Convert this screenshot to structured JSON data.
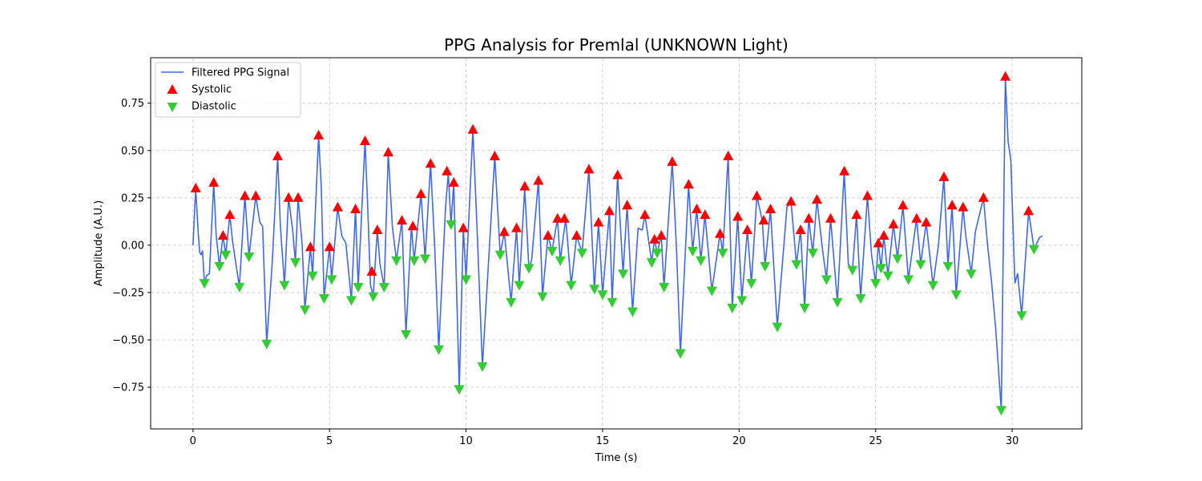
{
  "chart_data": {
    "type": "line",
    "title": "PPG Analysis for Premlal (UNKNOWN Light)",
    "xlabel": "Time (s)",
    "ylabel": "Amplitude (A.U.)",
    "xlim": [
      -1.55,
      32.55
    ],
    "ylim": [
      -0.97,
      0.99
    ],
    "xticks": [
      0,
      5,
      10,
      15,
      20,
      25,
      30
    ],
    "yticks": [
      -0.75,
      -0.5,
      -0.25,
      0.0,
      0.25,
      0.5,
      0.75
    ],
    "ytick_labels": [
      "−0.75",
      "−0.50",
      "−0.25",
      "0.00",
      "0.25",
      "0.50",
      "0.75"
    ],
    "grid": true,
    "legend_position": "top-left",
    "colors": {
      "signal": "#4169e1",
      "systolic": "#ff0000",
      "diastolic": "#32cd32"
    },
    "series": [
      {
        "name": "Filtered PPG Signal",
        "kind": "line",
        "points": [
          [
            0.0,
            0.0
          ],
          [
            0.1,
            0.3
          ],
          [
            0.2,
            0.05
          ],
          [
            0.25,
            -0.04
          ],
          [
            0.3,
            -0.05
          ],
          [
            0.35,
            -0.03
          ],
          [
            0.42,
            -0.2
          ],
          [
            0.5,
            -0.16
          ],
          [
            0.6,
            -0.15
          ],
          [
            0.76,
            0.33
          ],
          [
            0.85,
            0.05
          ],
          [
            0.97,
            -0.11
          ],
          [
            1.1,
            0.05
          ],
          [
            1.2,
            -0.05
          ],
          [
            1.35,
            0.16
          ],
          [
            1.45,
            0.02
          ],
          [
            1.7,
            -0.22
          ],
          [
            1.9,
            0.26
          ],
          [
            2.05,
            -0.06
          ],
          [
            2.3,
            0.26
          ],
          [
            2.45,
            0.12
          ],
          [
            2.55,
            0.1
          ],
          [
            2.7,
            -0.52
          ],
          [
            2.9,
            -0.1
          ],
          [
            3.1,
            0.47
          ],
          [
            3.2,
            0.1
          ],
          [
            3.35,
            -0.21
          ],
          [
            3.5,
            0.25
          ],
          [
            3.65,
            0.08
          ],
          [
            3.75,
            -0.09
          ],
          [
            3.85,
            0.25
          ],
          [
            4.0,
            0.0
          ],
          [
            4.1,
            -0.34
          ],
          [
            4.3,
            -0.01
          ],
          [
            4.38,
            -0.16
          ],
          [
            4.6,
            0.58
          ],
          [
            4.7,
            0.3
          ],
          [
            4.8,
            -0.28
          ],
          [
            5.0,
            -0.01
          ],
          [
            5.08,
            -0.18
          ],
          [
            5.3,
            0.2
          ],
          [
            5.45,
            0.05
          ],
          [
            5.6,
            0.01
          ],
          [
            5.8,
            -0.29
          ],
          [
            5.95,
            0.19
          ],
          [
            6.05,
            -0.22
          ],
          [
            6.3,
            0.55
          ],
          [
            6.4,
            0.2
          ],
          [
            6.5,
            -0.21
          ],
          [
            6.6,
            -0.27
          ],
          [
            6.75,
            0.08
          ],
          [
            6.85,
            -0.1
          ],
          [
            7.0,
            -0.22
          ],
          [
            7.15,
            0.49
          ],
          [
            7.3,
            0.1
          ],
          [
            7.45,
            -0.08
          ],
          [
            7.65,
            0.13
          ],
          [
            7.8,
            -0.47
          ],
          [
            8.0,
            0.1
          ],
          [
            8.1,
            -0.08
          ],
          [
            8.35,
            0.27
          ],
          [
            8.5,
            -0.07
          ],
          [
            8.7,
            0.43
          ],
          [
            8.85,
            0.0
          ],
          [
            9.0,
            -0.55
          ],
          [
            9.25,
            0.2
          ],
          [
            9.35,
            0.38
          ],
          [
            9.45,
            0.11
          ],
          [
            9.55,
            0.33
          ],
          [
            9.75,
            -0.76
          ],
          [
            9.9,
            0.09
          ],
          [
            10.0,
            -0.18
          ],
          [
            10.25,
            0.61
          ],
          [
            10.4,
            0.1
          ],
          [
            10.6,
            -0.64
          ],
          [
            11.05,
            0.47
          ],
          [
            11.25,
            -0.05
          ],
          [
            11.4,
            0.07
          ],
          [
            11.65,
            -0.3
          ],
          [
            11.85,
            0.09
          ],
          [
            11.95,
            -0.21
          ],
          [
            12.15,
            0.3
          ],
          [
            12.3,
            -0.12
          ],
          [
            12.4,
            -0.08
          ],
          [
            12.65,
            0.34
          ],
          [
            12.8,
            -0.27
          ],
          [
            13.0,
            0.05
          ],
          [
            13.15,
            -0.03
          ],
          [
            13.35,
            0.14
          ],
          [
            13.45,
            -0.08
          ],
          [
            13.65,
            0.14
          ],
          [
            13.85,
            -0.21
          ],
          [
            14.05,
            0.05
          ],
          [
            14.25,
            -0.04
          ],
          [
            14.5,
            0.4
          ],
          [
            14.7,
            -0.23
          ],
          [
            14.85,
            0.12
          ],
          [
            15.0,
            -0.26
          ],
          [
            15.25,
            0.18
          ],
          [
            15.35,
            -0.3
          ],
          [
            15.55,
            0.37
          ],
          [
            15.75,
            -0.15
          ],
          [
            15.9,
            0.21
          ],
          [
            16.1,
            -0.35
          ],
          [
            16.3,
            0.09
          ],
          [
            16.45,
            0.08
          ],
          [
            16.55,
            0.16
          ],
          [
            16.8,
            -0.09
          ],
          [
            16.9,
            0.03
          ],
          [
            17.0,
            -0.04
          ],
          [
            17.15,
            0.05
          ],
          [
            17.25,
            -0.22
          ],
          [
            17.55,
            0.44
          ],
          [
            17.7,
            0.0
          ],
          [
            17.85,
            -0.57
          ],
          [
            18.15,
            0.32
          ],
          [
            18.3,
            -0.03
          ],
          [
            18.45,
            0.19
          ],
          [
            18.6,
            -0.08
          ],
          [
            18.75,
            0.16
          ],
          [
            19.0,
            -0.24
          ],
          [
            19.3,
            0.06
          ],
          [
            19.4,
            -0.04
          ],
          [
            19.6,
            0.47
          ],
          [
            19.75,
            -0.33
          ],
          [
            19.95,
            0.15
          ],
          [
            20.1,
            -0.29
          ],
          [
            20.3,
            0.08
          ],
          [
            20.45,
            -0.2
          ],
          [
            20.65,
            0.26
          ],
          [
            20.85,
            0.13
          ],
          [
            20.95,
            -0.11
          ],
          [
            21.15,
            0.19
          ],
          [
            21.4,
            -0.43
          ],
          [
            21.75,
            0.2
          ],
          [
            21.9,
            0.23
          ],
          [
            22.1,
            -0.1
          ],
          [
            22.25,
            0.08
          ],
          [
            22.4,
            -0.33
          ],
          [
            22.55,
            0.14
          ],
          [
            22.7,
            -0.04
          ],
          [
            22.85,
            0.24
          ],
          [
            23.05,
            -0.02
          ],
          [
            23.2,
            -0.18
          ],
          [
            23.35,
            0.14
          ],
          [
            23.6,
            -0.3
          ],
          [
            23.85,
            0.39
          ],
          [
            24.0,
            -0.1
          ],
          [
            24.15,
            -0.13
          ],
          [
            24.3,
            0.16
          ],
          [
            24.45,
            -0.28
          ],
          [
            24.7,
            0.26
          ],
          [
            24.85,
            -0.05
          ],
          [
            25.0,
            -0.2
          ],
          [
            25.1,
            0.01
          ],
          [
            25.2,
            -0.12
          ],
          [
            25.3,
            0.05
          ],
          [
            25.45,
            -0.16
          ],
          [
            25.65,
            0.11
          ],
          [
            25.8,
            -0.07
          ],
          [
            26.0,
            0.21
          ],
          [
            26.2,
            -0.18
          ],
          [
            26.5,
            0.14
          ],
          [
            26.65,
            -0.1
          ],
          [
            26.85,
            0.12
          ],
          [
            27.1,
            -0.21
          ],
          [
            27.3,
            0.0
          ],
          [
            27.5,
            0.36
          ],
          [
            27.65,
            -0.11
          ],
          [
            27.8,
            0.21
          ],
          [
            27.95,
            -0.26
          ],
          [
            28.2,
            0.2
          ],
          [
            28.3,
            0.05
          ],
          [
            28.5,
            -0.15
          ],
          [
            28.65,
            0.07
          ],
          [
            28.95,
            0.25
          ],
          [
            29.1,
            0.0
          ],
          [
            29.25,
            -0.2
          ],
          [
            29.4,
            -0.45
          ],
          [
            29.6,
            -0.87
          ],
          [
            29.75,
            0.89
          ],
          [
            29.85,
            0.55
          ],
          [
            29.95,
            0.45
          ],
          [
            30.1,
            -0.2
          ],
          [
            30.2,
            -0.15
          ],
          [
            30.35,
            -0.37
          ],
          [
            30.6,
            0.18
          ],
          [
            30.8,
            -0.02
          ],
          [
            31.0,
            0.04
          ],
          [
            31.1,
            0.05
          ]
        ]
      },
      {
        "name": "Systolic",
        "kind": "markers",
        "marker": "triangle-up",
        "x": [
          0.1,
          0.76,
          1.1,
          1.35,
          1.9,
          2.3,
          3.1,
          3.5,
          3.85,
          4.3,
          4.6,
          5.0,
          5.3,
          5.95,
          6.3,
          6.55,
          6.75,
          7.15,
          7.65,
          8.05,
          8.35,
          8.7,
          9.3,
          9.55,
          9.9,
          10.25,
          11.05,
          11.4,
          11.85,
          12.15,
          12.65,
          13.0,
          13.35,
          13.6,
          14.05,
          14.5,
          14.85,
          15.25,
          15.55,
          15.9,
          16.55,
          16.9,
          17.15,
          17.55,
          18.15,
          18.45,
          18.75,
          19.3,
          19.6,
          19.95,
          20.3,
          20.65,
          20.9,
          21.15,
          21.9,
          22.25,
          22.55,
          22.85,
          23.35,
          23.85,
          24.3,
          24.7,
          25.1,
          25.3,
          25.65,
          26.0,
          26.5,
          26.85,
          27.5,
          27.8,
          28.2,
          28.95,
          29.75,
          30.6
        ],
        "y": [
          0.3,
          0.33,
          0.05,
          0.16,
          0.26,
          0.26,
          0.47,
          0.25,
          0.25,
          -0.01,
          0.58,
          -0.01,
          0.2,
          0.19,
          0.55,
          -0.14,
          0.08,
          0.49,
          0.13,
          0.1,
          0.27,
          0.43,
          0.39,
          0.33,
          0.09,
          0.61,
          0.47,
          0.07,
          0.09,
          0.31,
          0.34,
          0.05,
          0.14,
          0.14,
          0.05,
          0.4,
          0.12,
          0.18,
          0.37,
          0.21,
          0.16,
          0.03,
          0.05,
          0.44,
          0.32,
          0.19,
          0.16,
          0.06,
          0.47,
          0.15,
          0.08,
          0.26,
          0.13,
          0.19,
          0.23,
          0.08,
          0.14,
          0.24,
          0.14,
          0.39,
          0.16,
          0.26,
          0.01,
          0.05,
          0.11,
          0.21,
          0.14,
          0.12,
          0.36,
          0.21,
          0.2,
          0.25,
          0.89,
          0.18
        ]
      },
      {
        "name": "Diastolic",
        "kind": "markers",
        "marker": "triangle-down",
        "x": [
          0.42,
          0.97,
          1.2,
          1.7,
          2.05,
          2.7,
          3.35,
          3.75,
          4.1,
          4.38,
          4.8,
          5.08,
          5.8,
          6.05,
          6.6,
          7.0,
          7.45,
          7.8,
          8.1,
          8.5,
          9.0,
          9.45,
          9.75,
          10.0,
          10.6,
          11.25,
          11.65,
          11.95,
          12.3,
          12.8,
          13.15,
          13.45,
          13.85,
          14.25,
          14.7,
          15.0,
          15.35,
          15.75,
          16.1,
          16.8,
          17.0,
          17.25,
          17.85,
          18.3,
          18.6,
          19.0,
          19.4,
          19.75,
          20.1,
          20.45,
          20.95,
          21.4,
          22.1,
          22.4,
          22.7,
          23.2,
          23.6,
          24.15,
          24.45,
          25.0,
          25.2,
          25.45,
          25.8,
          26.2,
          26.65,
          27.1,
          27.65,
          27.95,
          28.5,
          29.6,
          30.35,
          30.8
        ],
        "y": [
          -0.2,
          -0.11,
          -0.05,
          -0.22,
          -0.06,
          -0.52,
          -0.21,
          -0.09,
          -0.34,
          -0.16,
          -0.28,
          -0.18,
          -0.29,
          -0.22,
          -0.27,
          -0.22,
          -0.08,
          -0.47,
          -0.08,
          -0.07,
          -0.55,
          0.11,
          -0.76,
          -0.18,
          -0.64,
          -0.05,
          -0.3,
          -0.21,
          -0.12,
          -0.27,
          -0.03,
          -0.08,
          -0.21,
          -0.04,
          -0.23,
          -0.26,
          -0.3,
          -0.15,
          -0.35,
          -0.09,
          -0.04,
          -0.22,
          -0.57,
          -0.03,
          -0.08,
          -0.24,
          -0.04,
          -0.33,
          -0.29,
          -0.2,
          -0.11,
          -0.43,
          -0.1,
          -0.33,
          -0.04,
          -0.18,
          -0.3,
          -0.13,
          -0.28,
          -0.2,
          -0.12,
          -0.16,
          -0.07,
          -0.18,
          -0.1,
          -0.21,
          -0.11,
          -0.26,
          -0.15,
          -0.87,
          -0.37,
          -0.02
        ]
      }
    ]
  }
}
